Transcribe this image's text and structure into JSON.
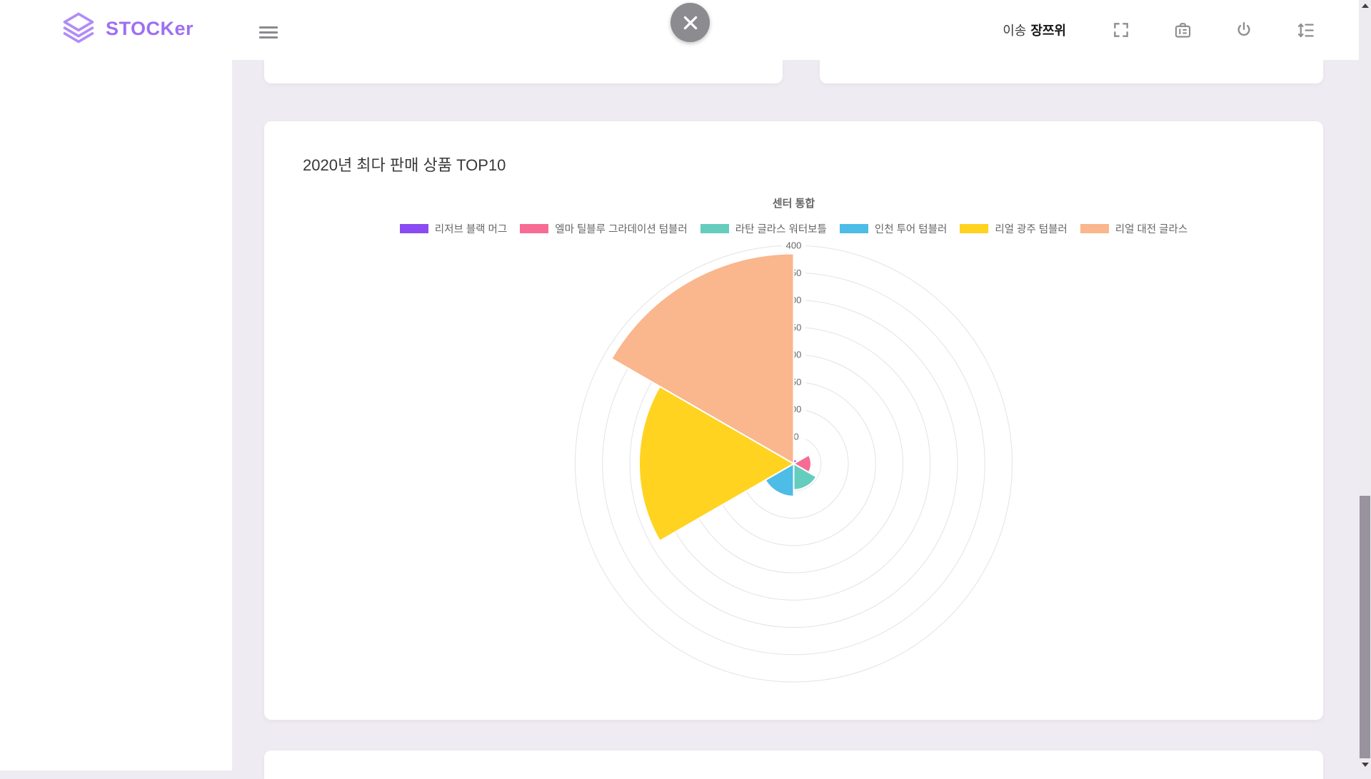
{
  "brand": {
    "name": "STOCKer",
    "color": "#9d6ff3",
    "icon": "layers-icon"
  },
  "header": {
    "user_prefix": "이송",
    "user_name": "장쯔위",
    "icons": [
      "hamburger-menu-icon",
      "close-icon",
      "fullscreen-icon",
      "briefcase-icon",
      "power-icon",
      "line-spacing-icon"
    ]
  },
  "main_card": {
    "title": "2020년 최다 판매 상품 TOP10"
  },
  "chart_data": {
    "type": "polarArea",
    "title": "센터 통합",
    "legend_position": "top",
    "categories": [
      "리저브 블랙 머그",
      "엘마 틸블루 그라데이션 텀블러",
      "라탄 글라스 워터보틀",
      "인천 투어 텀블러",
      "리얼 광주 텀블러",
      "리얼 대전 글라스"
    ],
    "values": [
      8,
      32,
      48,
      60,
      283,
      385
    ],
    "colors": [
      "#8a4bf2",
      "#f76c94",
      "#65cdbe",
      "#4dbce6",
      "#ffd31f",
      "#fab68c"
    ],
    "rmin": 0,
    "rmax": 400,
    "rstep": 50,
    "grid": "circular",
    "ring_color": "#e3e3e3"
  }
}
